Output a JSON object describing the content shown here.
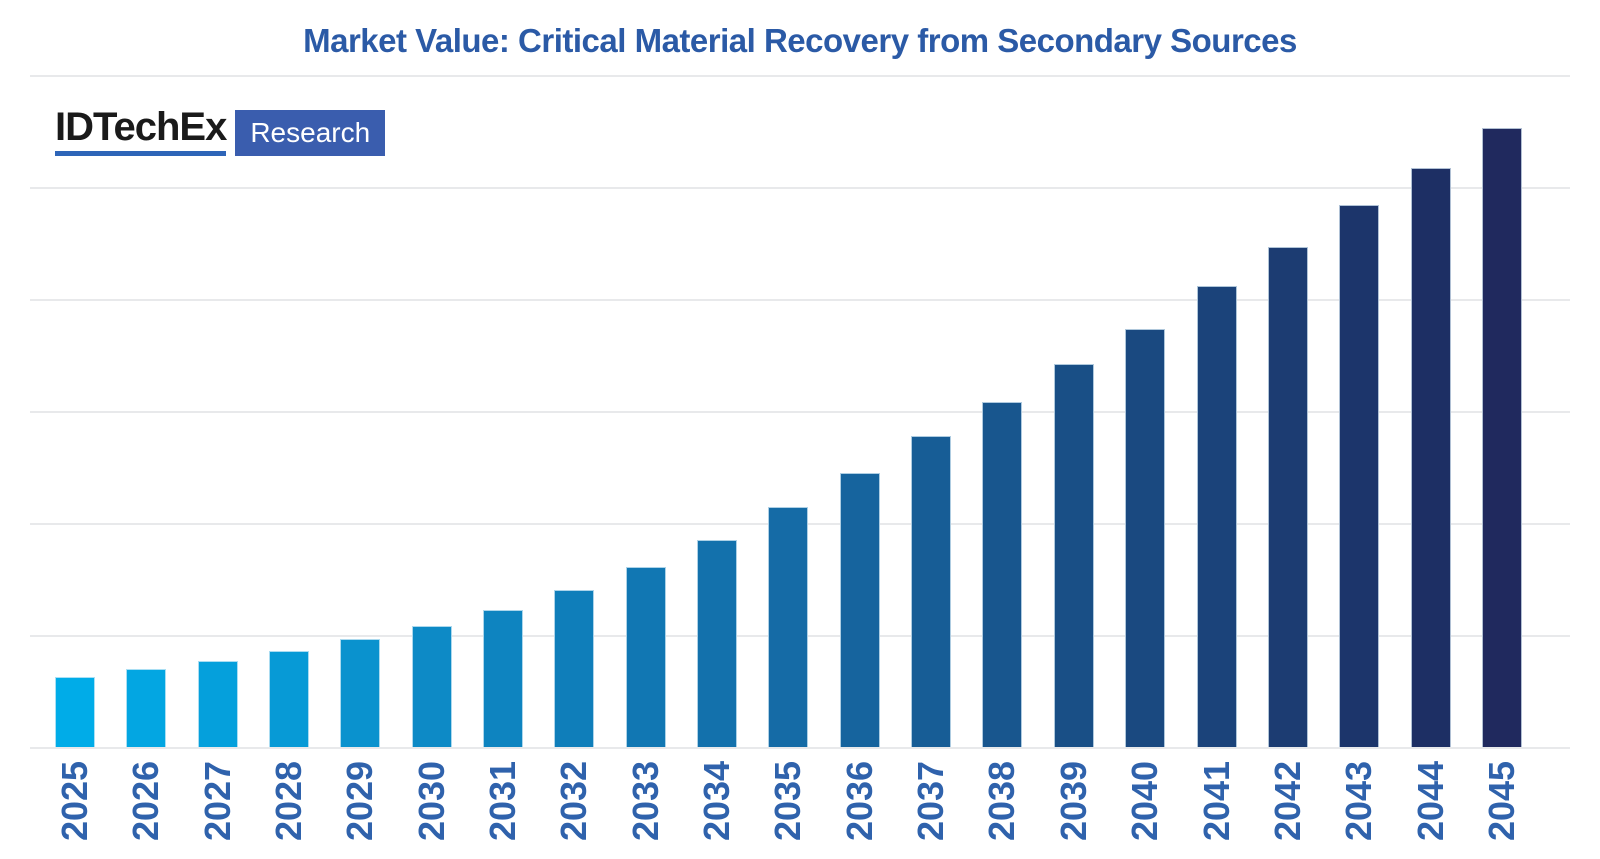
{
  "header": {
    "title": "Market Value: Critical Material Recovery from Secondary Sources",
    "title_color": "#2B5AA6"
  },
  "logo": {
    "brand": "IDTechEx",
    "suffix": "Research",
    "brand_color": "#1A1A1A",
    "underline_color": "#2E65B8",
    "box_color": "#3A5DAE",
    "suffix_color": "#FFFFFF"
  },
  "chart_data": {
    "type": "bar",
    "title": "Market Value: Critical Material Recovery from Secondary Sources",
    "categories": [
      "2025",
      "2026",
      "2027",
      "2028",
      "2029",
      "2030",
      "2031",
      "2032",
      "2033",
      "2034",
      "2035",
      "2036",
      "2037",
      "2038",
      "2039",
      "2040",
      "2041",
      "2042",
      "2043",
      "2044",
      "2045"
    ],
    "values": [
      11.3,
      12.6,
      13.9,
      15.5,
      17.4,
      19.5,
      22.1,
      25.3,
      29.0,
      33.5,
      38.7,
      44.2,
      50.2,
      55.8,
      61.8,
      67.6,
      74.4,
      80.8,
      87.6,
      93.5,
      100.0
    ],
    "value_note": "No y-axis scale or data labels are shown in the chart; values are bar heights expressed as a percentage of the tallest (2045) bar.",
    "bar_colors": [
      "#00ACE8",
      "#03A6E2",
      "#05A0DC",
      "#079AD6",
      "#0A92CE",
      "#0D8AC6",
      "#0E84C0",
      "#0F7EBA",
      "#1177B3",
      "#1371AC",
      "#156BA6",
      "#16649E",
      "#175D96",
      "#18568E",
      "#194F86",
      "#1A4980",
      "#1B437A",
      "#1C3C72",
      "#1C356B",
      "#1D2F64",
      "#20295E"
    ],
    "xlabel": "",
    "ylabel": "",
    "x_tick_color": "#2F62AC",
    "ylim": [
      0,
      108.5
    ],
    "grid": {
      "show": true,
      "orientation": "horizontal",
      "color": "#E8E9EB",
      "line_count": 7,
      "includes_baseline": true
    },
    "legend": "none",
    "y_axis_ticks": "none"
  }
}
